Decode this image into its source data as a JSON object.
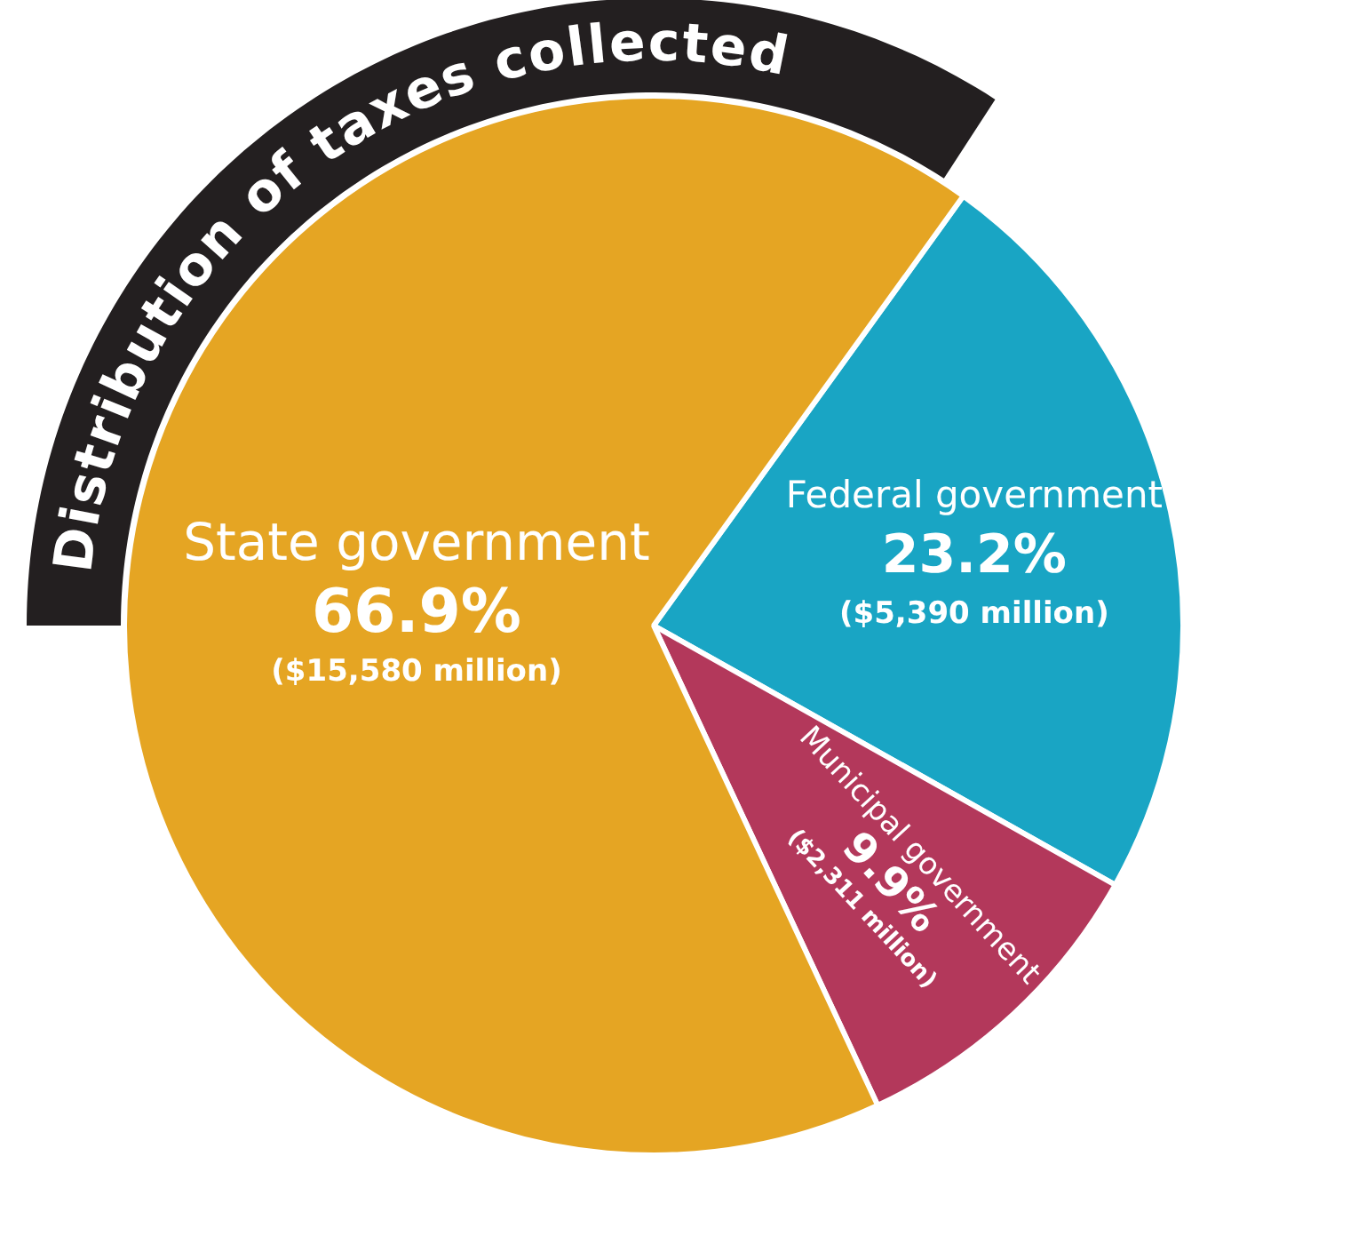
{
  "chart_data": {
    "type": "pie",
    "title": "Distribution of taxes collected",
    "categories": [
      "Federal government",
      "Municipal government",
      "State government"
    ],
    "values": [
      23.2,
      9.9,
      66.9
    ],
    "colors": [
      "#19a5c4",
      "#b3385b",
      "#e5a523"
    ],
    "value_labels": [
      "23.2%\n($5,390 million)",
      "9.9%\n($2,311 million)",
      "66.9%\n($15,580 million)"
    ],
    "legend": false
  }
}
